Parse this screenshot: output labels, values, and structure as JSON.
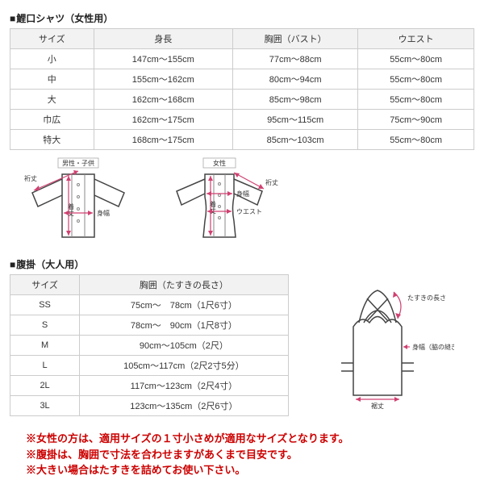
{
  "shirt": {
    "title": "鯉口シャツ（女性用）",
    "headers": [
      "サイズ",
      "身長",
      "胸囲（バスト）",
      "ウエスト"
    ],
    "rows": [
      [
        "小",
        "147cm～155cm",
        "77cm～88cm",
        "55cm～80cm"
      ],
      [
        "中",
        "155cm～162cm",
        "80cm～94cm",
        "55cm～80cm"
      ],
      [
        "大",
        "162cm～168cm",
        "85cm～98cm",
        "55cm～80cm"
      ],
      [
        "巾広",
        "162cm～175cm",
        "95cm～115cm",
        "75cm～90cm"
      ],
      [
        "特大",
        "168cm～175cm",
        "85cm～103cm",
        "55cm～80cm"
      ]
    ]
  },
  "diagram_labels": {
    "male_child": "男性・子供",
    "female": "女性",
    "sleeve": "裄丈",
    "length": "着丈",
    "width": "身幅",
    "waist": "ウエスト",
    "strap": "たすきの長さ",
    "side": "身幅（脇の縫ぎ目）",
    "hem": "裾丈"
  },
  "haragake": {
    "title": "腹掛（大人用）",
    "headers": [
      "サイズ",
      "胸囲（たすきの長さ）"
    ],
    "rows": [
      [
        "SS",
        "75cm～　78cm（1尺6寸）"
      ],
      [
        "S",
        "78cm～　90cm（1尺8寸）"
      ],
      [
        "M",
        "90cm～105cm（2尺）"
      ],
      [
        "L",
        "105cm～117cm（2尺2寸5分）"
      ],
      [
        "2L",
        "117cm～123cm（2尺4寸）"
      ],
      [
        "3L",
        "123cm～135cm（2尺6寸）"
      ]
    ]
  },
  "notes": [
    "※女性の方は、適用サイズの１寸小さめが適用なサイズとなります。",
    "※腹掛は、胸囲で寸法を合わせますがあくまで目安です。",
    "※大きい場合はたすきを詰めてお使い下さい。"
  ],
  "colors": {
    "dim": "#d04070",
    "border": "#cccccc",
    "header_bg": "#f2f2f2",
    "note": "#cc0000"
  }
}
